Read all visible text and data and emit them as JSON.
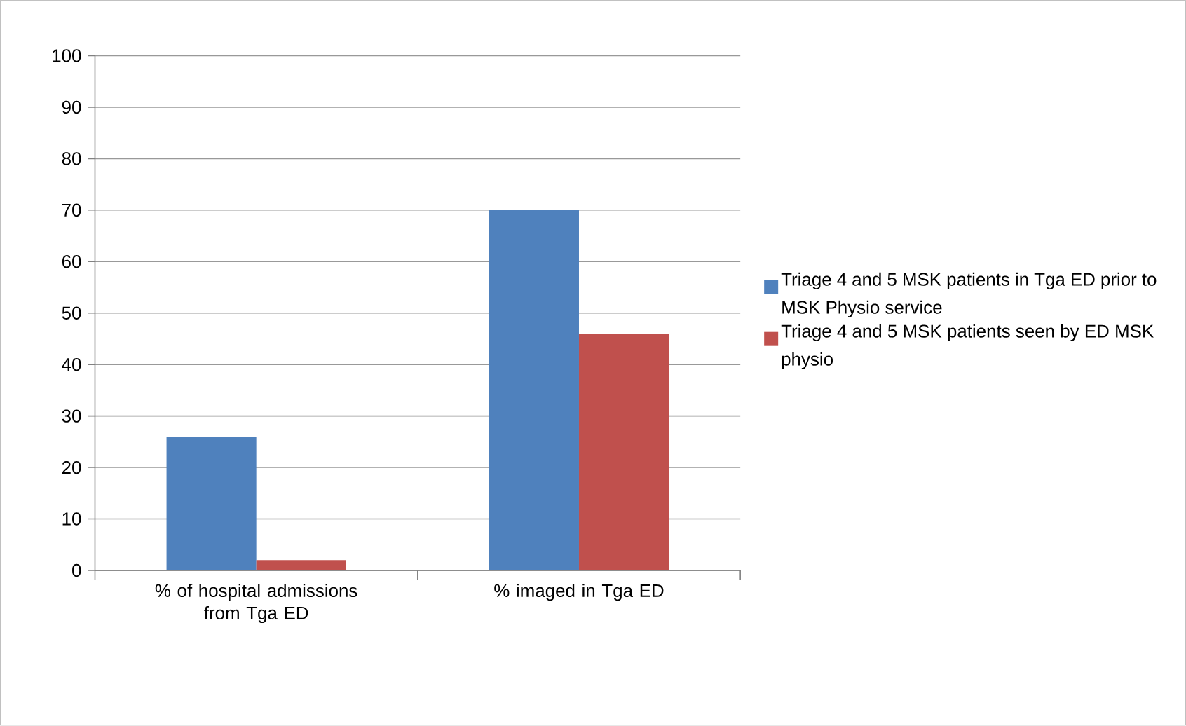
{
  "chart_data": {
    "type": "bar",
    "categories": [
      "% of hospital admissions from Tga ED",
      "% imaged in Tga ED"
    ],
    "series": [
      {
        "name": "Triage 4 and 5 MSK patients in Tga ED prior to MSK Physio service",
        "color": "#4f81bd",
        "values": [
          26,
          70
        ]
      },
      {
        "name": "Triage 4 and 5 MSK patients seen by ED MSK physio",
        "color": "#c0504d",
        "values": [
          2,
          46
        ]
      }
    ],
    "ylim": [
      0,
      100
    ],
    "yticks": [
      0,
      10,
      20,
      30,
      40,
      50,
      60,
      70,
      80,
      90,
      100
    ],
    "grid": "y",
    "legend": "right"
  }
}
